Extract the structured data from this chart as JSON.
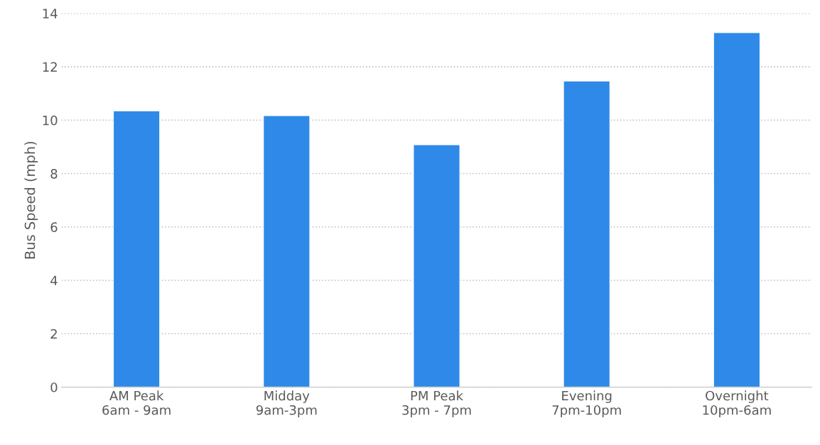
{
  "chart_data": {
    "type": "bar",
    "ylabel": "Bus Speed (mph)",
    "categories": [
      "AM Peak\n6am - 9am",
      "Midday\n9am-3pm",
      "PM Peak\n3pm - 7pm",
      "Evening\n7pm-10pm",
      "Overnight\n10pm-6am"
    ],
    "values": [
      10.35,
      10.17,
      9.08,
      11.47,
      13.28
    ],
    "color": "#2e89e8",
    "ylim": [
      0,
      14
    ],
    "yticks": [
      0,
      2,
      4,
      6,
      8,
      10,
      12,
      14
    ],
    "grid": "y"
  }
}
